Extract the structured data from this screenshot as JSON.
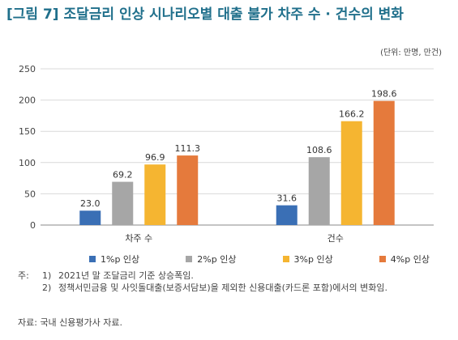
{
  "title": "[그림 7] 조달금리 인상 시나리오별 대출 불가 차주 수 · 건수의 변화",
  "unit": "(단위: 만명, 만건)",
  "chart_data": {
    "type": "bar",
    "categories": [
      "차주 수",
      "건수"
    ],
    "series": [
      {
        "name": "1%p 인상",
        "values": [
          23.0,
          31.6
        ],
        "color": "#3a6fb5"
      },
      {
        "name": "2%p 인상",
        "values": [
          69.2,
          108.6
        ],
        "color": "#a6a6a6"
      },
      {
        "name": "3%p 인상",
        "values": [
          96.9,
          166.2
        ],
        "color": "#f5b531"
      },
      {
        "name": "4%p 인상",
        "values": [
          111.3,
          198.6
        ],
        "color": "#e57a3c"
      }
    ],
    "value_labels": [
      [
        "23.0",
        "69.2",
        "96.9",
        "111.3"
      ],
      [
        "31.6",
        "108.6",
        "166.2",
        "198.6"
      ]
    ],
    "ylim": [
      0,
      250
    ],
    "yticks": [
      0,
      50,
      100,
      150,
      200,
      250
    ],
    "grid": true,
    "legend": "bottom"
  },
  "notes": [
    {
      "label": "주:",
      "num": "1)",
      "text": "2021년 말 조달금리 기준 상승폭임."
    },
    {
      "label": "",
      "num": "2)",
      "text": "정책서민금융 및 사잇돌대출(보증서담보)을 제외한 신용대출(카드론 포함)에서의 변화임."
    }
  ],
  "source": "자료: 국내 신용평가사 자료."
}
